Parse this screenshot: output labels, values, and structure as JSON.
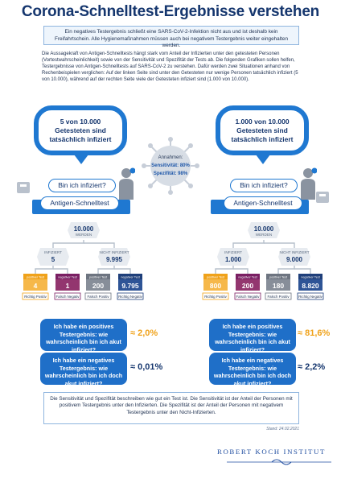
{
  "title": "Corona-Schnelltest-Ergebnisse verstehen",
  "intro": "Ein negatives Testergebnis schließt eine SARS-CoV-2-Infektion nicht aus und ist deshalb kein Freifahrtschein. Alle Hygienemaßnahmen müssen auch bei negativem Testergebnis weiter eingehalten werden.",
  "paragraph": "Die Aussagekraft von Antigen-Schnelltests hängt stark vom Anteil der Infizierten unter den getesteten Personen (Vortestwahrscheinlichkeit) sowie von der Sensitivität und Spezifität der Tests ab. Die folgenden Grafiken sollen helfen, Testergebnisse von Antigen-Schnelltests auf SARS-CoV-2 zu verstehen. Dafür werden zwei Situationen anhand von Rechenbeispielen verglichen: Auf der linken Seite sind unter den Getesteten nur wenige Personen tatsächlich infiziert (5 von 10.000), während auf der rechten Seite viele der Getesteten infiziert sind (1.000 von 10.000).",
  "assumptions": {
    "heading": "Annahmen:",
    "sensitivity": "Sensitivität: 80%",
    "specificity": "Spezifität: 98%"
  },
  "left": {
    "bubble": [
      "5 von 10.000",
      "Getesteten sind",
      "tatsächlich infiziert"
    ],
    "question": "Bin ich infiziert?",
    "test": "Antigen-Schnelltest",
    "root": {
      "value": "10.000",
      "label": "WERDEN"
    },
    "branch_a": {
      "label": "INFIZIERT",
      "value": "5"
    },
    "branch_b": {
      "label": "NICHT INFIZIERT",
      "value": "9.995"
    },
    "leaves": [
      {
        "header": "positiver Test",
        "value": "4",
        "caption": "Richtig Positiv"
      },
      {
        "header": "negativer Test",
        "value": "1",
        "caption": "Falsch Negativ"
      },
      {
        "header": "positiver Test",
        "value": "200",
        "caption": "Falsch Positiv"
      },
      {
        "header": "negativer Test",
        "value": "9.795",
        "caption": "Richtig Negativ"
      }
    ],
    "q1": {
      "text": "Ich habe ein positives Testergebnis: wie wahrscheinlich bin ich akut infiziert?",
      "value": "≈ 2,0%"
    },
    "q2": {
      "text": "Ich habe ein negatives Testergebnis: wie wahrscheinlich bin ich doch akut infiziert?",
      "value": "≈ 0,01%"
    }
  },
  "right": {
    "bubble": [
      "1.000 von 10.000",
      "Getesteten sind",
      "tatsächlich infiziert"
    ],
    "question": "Bin ich infiziert?",
    "test": "Antigen-Schnelltest",
    "root": {
      "value": "10.000",
      "label": "WERDEN"
    },
    "branch_a": {
      "label": "INFIZIERT",
      "value": "1.000"
    },
    "branch_b": {
      "label": "NICHT INFIZIERT",
      "value": "9.000"
    },
    "leaves": [
      {
        "header": "positiver Test",
        "value": "800",
        "caption": "Richtig Positiv"
      },
      {
        "header": "negativer Test",
        "value": "200",
        "caption": "Falsch Negativ"
      },
      {
        "header": "positiver Test",
        "value": "180",
        "caption": "Falsch Positiv"
      },
      {
        "header": "negativer Test",
        "value": "8.820",
        "caption": "Richtig Negativ"
      }
    ],
    "q1": {
      "text": "Ich habe ein positives Testergebnis: wie wahrscheinlich bin ich akut infiziert?",
      "value": "≈ 81,6%"
    },
    "q2": {
      "text": "Ich habe ein negatives Testergebnis: wie wahrscheinlich bin ich doch akut infiziert?",
      "value": "≈ 2,2%"
    }
  },
  "bottom": "Die Sensitivität und Spezifität beschreiben wie gut ein Test ist. Die Sensitivität ist der Anteil der Personen mit positivem Testergebnis unter den Infizierten. Die Spezifität ist der Anteil der Personen mit negativem Testergebnis unter den Nicht-Infizierten.",
  "stand": "Stand: 24.02.2021",
  "footer_logo": "ROBERT KOCH INSTITUT",
  "colors": {
    "blue": "#1f78d1",
    "navy": "#15366e",
    "orange": "#f0a21a",
    "purple": "#7a1f63",
    "grey": "#6d7480",
    "darkblue": "#1f3f7a"
  }
}
